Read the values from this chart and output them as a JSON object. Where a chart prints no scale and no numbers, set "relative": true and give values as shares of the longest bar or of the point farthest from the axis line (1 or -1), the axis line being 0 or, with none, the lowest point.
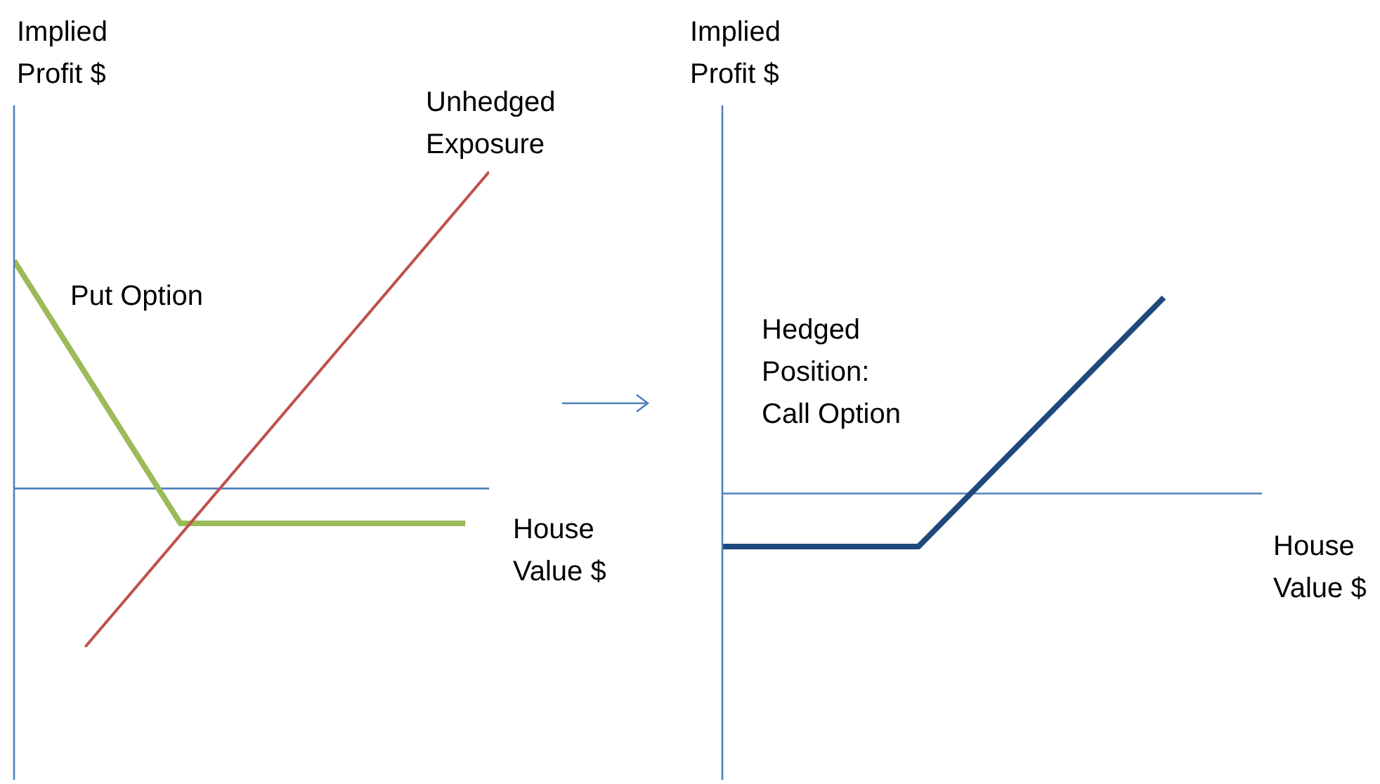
{
  "chart_data": [
    {
      "type": "line",
      "relative": true,
      "ylabel": "Implied Profit $",
      "xlabel": "House Value $",
      "tick_labels": false,
      "marker": "none",
      "line_style": "solid",
      "ref_lines": [
        {
          "axis": "y",
          "value": 0,
          "color": "#4f81bd"
        }
      ],
      "categories": [
        null,
        null,
        null,
        null,
        null,
        null,
        null,
        null,
        null,
        null,
        null,
        null,
        null,
        null,
        null,
        null,
        null,
        null,
        null,
        null,
        null
      ],
      "series": [
        {
          "name": "Put Option",
          "color": "#9bbb59",
          "values": [
            0.72,
            null,
            null,
            null,
            null,
            null,
            null,
            -0.11,
            null,
            null,
            null,
            null,
            null,
            null,
            null,
            null,
            null,
            null,
            null,
            -0.11,
            null
          ]
        },
        {
          "name": "Unhedged Exposure",
          "color": "#c0504d",
          "values": [
            null,
            null,
            null,
            -0.5,
            null,
            null,
            null,
            null,
            null,
            null,
            null,
            null,
            null,
            null,
            null,
            null,
            null,
            null,
            null,
            null,
            1
          ]
        }
      ]
    },
    {
      "type": "line",
      "relative": true,
      "ylabel": "Implied Profit $",
      "xlabel": "House Value $",
      "tick_labels": false,
      "marker": "none",
      "line_style": "solid",
      "ref_lines": [
        {
          "axis": "y",
          "value": 0,
          "color": "#4f81bd"
        }
      ],
      "categories": [
        null,
        null,
        null,
        null,
        null,
        null,
        null,
        null,
        null,
        null,
        null,
        null
      ],
      "series": [
        {
          "name": "Hedged Position: Call Option",
          "color": "#1f497d",
          "values": [
            -0.27,
            null,
            null,
            null,
            -0.27,
            null,
            null,
            null,
            null,
            1,
            null,
            null
          ]
        }
      ]
    }
  ]
}
